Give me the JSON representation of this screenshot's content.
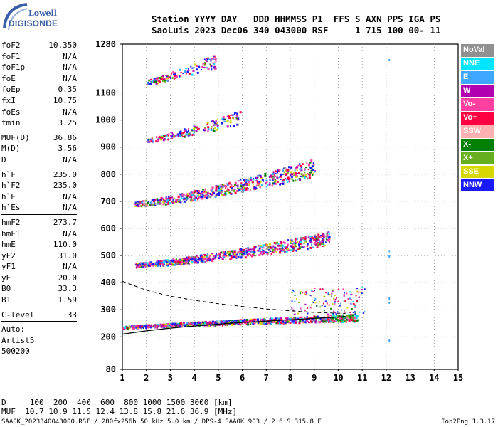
{
  "logo": {
    "line1": "Lowell",
    "line2": "DIGISONDE"
  },
  "header": {
    "line1": "Station YYYY DAY   DDD HHMMSS P1  FFS S AXN PPS IGA PS",
    "line2": "SaoLuis 2023 Dec06 340 043000 RSF     1 715 100 00- 11"
  },
  "params": {
    "group1": [
      {
        "name": "foF2",
        "value": "10.350"
      },
      {
        "name": "foF1",
        "value": "N/A"
      },
      {
        "name": "foF1p",
        "value": "N/A"
      },
      {
        "name": "foE",
        "value": "N/A"
      },
      {
        "name": "foEp",
        "value": "0.35"
      },
      {
        "name": "fxI",
        "value": "10.75"
      },
      {
        "name": "foEs",
        "value": "N/A"
      },
      {
        "name": "fmin",
        "value": "3.25"
      }
    ],
    "group2": [
      {
        "name": "MUF(D)",
        "value": "36.86"
      },
      {
        "name": "M(D)",
        "value": "3.56"
      },
      {
        "name": "D",
        "value": "N/A"
      }
    ],
    "group3": [
      {
        "name": "h`F",
        "value": "235.0"
      },
      {
        "name": "h`F2",
        "value": "235.0"
      },
      {
        "name": "h`E",
        "value": "N/A"
      },
      {
        "name": "h`Es",
        "value": "N/A"
      }
    ],
    "group4": [
      {
        "name": "hmF2",
        "value": "273.7"
      },
      {
        "name": "hmF1",
        "value": "N/A"
      },
      {
        "name": "hmE",
        "value": "110.0"
      },
      {
        "name": "yF2",
        "value": "31.0"
      },
      {
        "name": "yF1",
        "value": "N/A"
      },
      {
        "name": "yE",
        "value": "20.0"
      },
      {
        "name": "B0",
        "value": "33.3"
      },
      {
        "name": "B1",
        "value": "1.59"
      }
    ],
    "clevel": {
      "name": "C-level",
      "value": "33"
    },
    "auto": [
      "Auto:",
      "Artist5",
      "500200"
    ]
  },
  "legend": [
    {
      "label": "NoVal",
      "color": "#909090"
    },
    {
      "label": "NNE",
      "color": "#00e5ff"
    },
    {
      "label": "E",
      "color": "#3fa6ff"
    },
    {
      "label": "W",
      "color": "#b000b0"
    },
    {
      "label": "Vo-",
      "color": "#ff40a0"
    },
    {
      "label": "Vo+",
      "color": "#ff0040"
    },
    {
      "label": "SSW",
      "color": "#ffb0b0"
    },
    {
      "label": "X-",
      "color": "#008000"
    },
    {
      "label": "X+",
      "color": "#66b020"
    },
    {
      "label": "SSE",
      "color": "#d8d800"
    },
    {
      "label": "NNW",
      "color": "#1a1aff"
    }
  ],
  "footer": {
    "line1": "D     100  200  400  600  800 1000 1500 3000 [km]",
    "line2": "MUF  10.7 10.9 11.5 12.4 13.8 15.8 21.6 36.9 [MHz]",
    "line3": "SAA0K_2023340043000.RSF / 280fx256h 50 kHz 5.0 km / DPS-4 SAA0K 903 / 2.6 S 315.8 E",
    "version": "Ion2Png 1.3.17"
  },
  "chart_data": {
    "type": "scatter",
    "xlabel": "",
    "ylabel": "",
    "xlim": [
      1,
      15
    ],
    "ylim": [
      80,
      1280
    ],
    "x_ticks": [
      1,
      2,
      3,
      4,
      5,
      6,
      7,
      8,
      9,
      10,
      11,
      12,
      13,
      14,
      15
    ],
    "y_ticks": [
      80,
      200,
      300,
      400,
      500,
      600,
      700,
      800,
      900,
      1000,
      1100,
      1280
    ],
    "grid": "dotted",
    "legend_position": "right",
    "traces": [
      {
        "name": "1st hop F2 trace",
        "start": [
          1.0,
          235
        ],
        "end": [
          10.8,
          270
        ],
        "curve": 0.8
      },
      {
        "name": "2nd hop",
        "start": [
          1.5,
          465
        ],
        "end": [
          9.6,
          560
        ],
        "curve": 1.3
      },
      {
        "name": "3rd hop",
        "start": [
          1.5,
          690
        ],
        "end": [
          9.0,
          820
        ],
        "curve": 1.3
      },
      {
        "name": "4th hop",
        "start": [
          2.0,
          925
        ],
        "end": [
          6.0,
          1010
        ],
        "curve": 1.2
      },
      {
        "name": "5th hop",
        "start": [
          2.0,
          1140
        ],
        "end": [
          4.9,
          1215
        ],
        "curve": 1.2
      }
    ],
    "profile_solid": [
      [
        1.0,
        210
      ],
      [
        2,
        222
      ],
      [
        3,
        232
      ],
      [
        4,
        240
      ],
      [
        5,
        247
      ],
      [
        6,
        253
      ],
      [
        7,
        258
      ],
      [
        8,
        263
      ],
      [
        9,
        268
      ],
      [
        10,
        273
      ],
      [
        10.3,
        275
      ]
    ],
    "profile_dashed": [
      [
        1.0,
        405
      ],
      [
        2,
        372
      ],
      [
        3,
        350
      ],
      [
        4,
        335
      ],
      [
        5,
        322
      ],
      [
        6,
        312
      ],
      [
        7,
        303
      ],
      [
        8,
        296
      ],
      [
        9,
        290
      ],
      [
        10,
        287
      ],
      [
        10.3,
        286
      ]
    ]
  }
}
